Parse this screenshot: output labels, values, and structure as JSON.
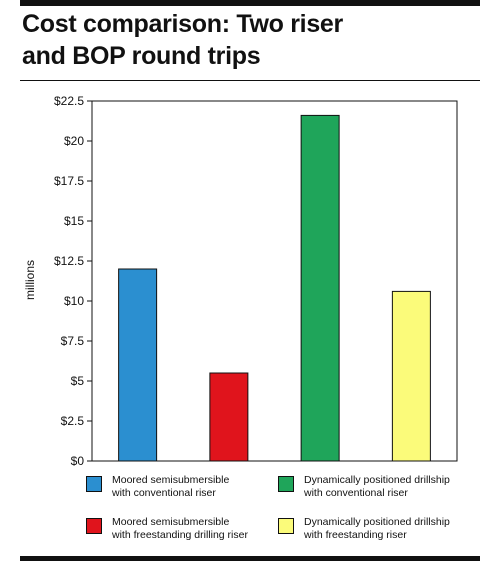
{
  "title": "Cost comparison: Two riser\nand BOP round trips",
  "chart_data": {
    "type": "bar",
    "title": "Cost comparison: Two riser and BOP round trips",
    "ylabel": "millions",
    "xlabel": "",
    "ylim": [
      0,
      22.5
    ],
    "yticks": [
      "$0",
      "$2.5",
      "$5",
      "$7.5",
      "$10",
      "$12.5",
      "$15",
      "$17.5",
      "$20",
      "$22.5"
    ],
    "grid": false,
    "legend_position": "bottom",
    "categories": [
      "Moored semisubmersible with conventional riser",
      "Moored semisubmersible with freestanding drilling riser",
      "Dynamically positioned drillship with conventional riser",
      "Dynamically positioned drillship with freestanding riser"
    ],
    "values": [
      12.0,
      5.5,
      21.6,
      10.6
    ],
    "colors": [
      "#2b8fd0",
      "#e0141c",
      "#1fa55a",
      "#fbfb7a"
    ]
  },
  "legend": [
    {
      "label": "Moored semisubmersible\nwith conventional riser",
      "color": "#2b8fd0"
    },
    {
      "label": "Dynamically positioned drillship\nwith conventional riser",
      "color": "#1fa55a"
    },
    {
      "label": "Moored semisubmersible\nwith freestanding drilling riser",
      "color": "#e0141c"
    },
    {
      "label": "Dynamically positioned drillship\nwith freestanding riser",
      "color": "#fbfb7a"
    }
  ]
}
